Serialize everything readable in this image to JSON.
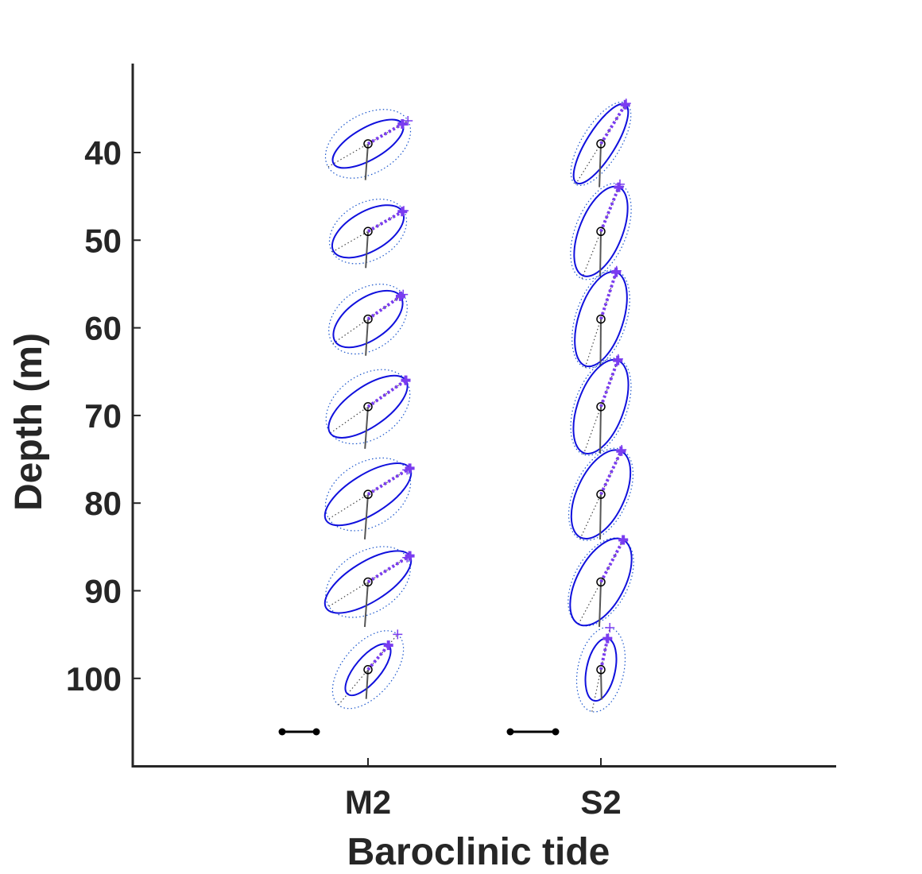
{
  "chart_data": {
    "type": "scatter",
    "title": "",
    "xlabel": "Baroclinic tide",
    "ylabel": "Depth (m)",
    "categories": [
      "M2",
      "S2"
    ],
    "yticks": [
      "40",
      "50",
      "60",
      "70",
      "80",
      "90",
      "100"
    ],
    "ylim": [
      109,
      29
    ],
    "y_reversed": true,
    "grid": false,
    "legend": "none",
    "colors": {
      "axis": "#262626",
      "ellipse": "#1010dd",
      "ellipse_ci": "#1a55cc",
      "velocity_marker": "#7a3cf0",
      "center_marker": "#000000",
      "phase_line": "#555555",
      "scale_bar": "#000000"
    },
    "depths": [
      39,
      49,
      59,
      69,
      79,
      89,
      99
    ],
    "series": [
      {
        "constituent": "M2",
        "ellipses": [
          {
            "depth": 39,
            "semi_major": 0.5,
            "semi_minor": 0.2,
            "inclination_deg": 30,
            "ci_semi_major": 0.58,
            "ci_semi_minor": 0.37,
            "phase_deg": 254
          },
          {
            "depth": 49,
            "semi_major": 0.5,
            "semi_minor": 0.25,
            "inclination_deg": 30,
            "ci_semi_major": 0.52,
            "ci_semi_minor": 0.36,
            "phase_deg": 256
          },
          {
            "depth": 59,
            "semi_major": 0.5,
            "semi_minor": 0.26,
            "inclination_deg": 35,
            "ci_semi_major": 0.54,
            "ci_semi_minor": 0.38,
            "phase_deg": 256
          },
          {
            "depth": 69,
            "semi_major": 0.58,
            "semi_minor": 0.25,
            "inclination_deg": 35,
            "ci_semi_major": 0.58,
            "ci_semi_minor": 0.4,
            "phase_deg": 254
          },
          {
            "depth": 79,
            "semi_major": 0.62,
            "semi_minor": 0.25,
            "inclination_deg": 32,
            "ci_semi_major": 0.58,
            "ci_semi_minor": 0.4,
            "phase_deg": 254
          },
          {
            "depth": 89,
            "semi_major": 0.62,
            "semi_minor": 0.25,
            "inclination_deg": 32,
            "ci_semi_major": 0.58,
            "ci_semi_minor": 0.38,
            "phase_deg": 254
          },
          {
            "depth": 99,
            "semi_major": 0.4,
            "semi_minor": 0.16,
            "inclination_deg": 50,
            "ci_semi_major": 0.58,
            "ci_semi_minor": 0.32,
            "phase_deg": 256
          }
        ]
      },
      {
        "constituent": "S2",
        "ellipses": [
          {
            "depth": 39,
            "semi_major": 0.58,
            "semi_minor": 0.18,
            "inclination_deg": 58,
            "ci_semi_major": 0.6,
            "ci_semi_minor": 0.24,
            "phase_deg": 262
          },
          {
            "depth": 49,
            "semi_major": 0.6,
            "semi_minor": 0.27,
            "inclination_deg": 68,
            "ci_semi_major": 0.64,
            "ci_semi_minor": 0.32,
            "phase_deg": 266
          },
          {
            "depth": 59,
            "semi_major": 0.62,
            "semi_minor": 0.28,
            "inclination_deg": 72,
            "ci_semi_major": 0.64,
            "ci_semi_minor": 0.32,
            "phase_deg": 268
          },
          {
            "depth": 69,
            "semi_major": 0.62,
            "semi_minor": 0.29,
            "inclination_deg": 70,
            "ci_semi_major": 0.64,
            "ci_semi_minor": 0.33,
            "phase_deg": 266
          },
          {
            "depth": 79,
            "semi_major": 0.6,
            "semi_minor": 0.3,
            "inclination_deg": 65,
            "ci_semi_major": 0.62,
            "ci_semi_minor": 0.34,
            "phase_deg": 266
          },
          {
            "depth": 89,
            "semi_major": 0.6,
            "semi_minor": 0.3,
            "inclination_deg": 62,
            "ci_semi_major": 0.6,
            "ci_semi_minor": 0.34,
            "phase_deg": 262
          },
          {
            "depth": 99,
            "semi_major": 0.4,
            "semi_minor": 0.18,
            "inclination_deg": 78,
            "ci_semi_major": 0.54,
            "ci_semi_minor": 0.29,
            "phase_deg": 275
          }
        ]
      }
    ]
  }
}
